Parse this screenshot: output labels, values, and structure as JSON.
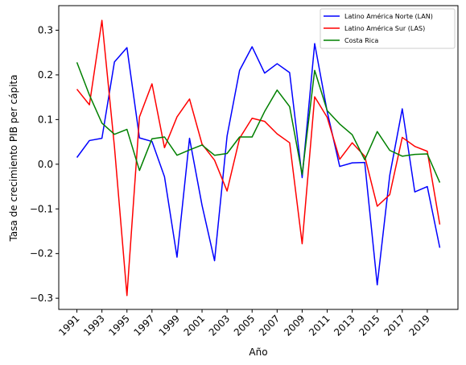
{
  "chart_data": {
    "type": "line",
    "title": "",
    "xlabel": "Año",
    "ylabel": "Tasa de crecimiento PIB per cápita",
    "x": [
      1991,
      1992,
      1993,
      1994,
      1995,
      1996,
      1997,
      1998,
      1999,
      2000,
      2001,
      2002,
      2003,
      2004,
      2005,
      2006,
      2007,
      2008,
      2009,
      2010,
      2011,
      2012,
      2013,
      2014,
      2015,
      2016,
      2017,
      2018,
      2019,
      2020
    ],
    "xticks": [
      1991,
      1993,
      1995,
      1997,
      1999,
      2001,
      2003,
      2005,
      2007,
      2009,
      2011,
      2013,
      2015,
      2017,
      2019
    ],
    "xtick_labels": [
      "1991",
      "1993",
      "1995",
      "1997",
      "1999",
      "2001",
      "2003",
      "2005",
      "2007",
      "2009",
      "2011",
      "2013",
      "2015",
      "2017",
      "2019"
    ],
    "yticks": [
      -0.3,
      -0.2,
      -0.1,
      0.0,
      0.1,
      0.2,
      0.3
    ],
    "ytick_labels": [
      "−0.3",
      "−0.2",
      "−0.1",
      "0.0",
      "0.1",
      "0.2",
      "0.3"
    ],
    "xlim": [
      1989.55,
      2021.45
    ],
    "ylim": [
      -0.325,
      0.355
    ],
    "grid": false,
    "legend_position": "top-right",
    "series": [
      {
        "name": "Latino América Norte (LAN)",
        "color": "#0000ff",
        "values": [
          0.015,
          0.053,
          0.058,
          0.229,
          0.261,
          0.059,
          0.051,
          -0.028,
          -0.208,
          0.058,
          -0.092,
          -0.216,
          0.063,
          0.21,
          0.263,
          0.204,
          0.225,
          0.205,
          -0.03,
          0.27,
          0.118,
          -0.005,
          0.003,
          0.004,
          -0.27,
          -0.025,
          0.124,
          -0.062,
          -0.05,
          -0.187
        ]
      },
      {
        "name": "Latino América Sur (LAS)",
        "color": "#ff0000",
        "values": [
          0.168,
          0.133,
          0.322,
          0.039,
          -0.294,
          0.106,
          0.18,
          0.037,
          0.106,
          0.146,
          0.045,
          0.009,
          -0.06,
          0.058,
          0.103,
          0.096,
          0.068,
          0.048,
          -0.178,
          0.151,
          0.105,
          0.011,
          0.048,
          0.018,
          -0.094,
          -0.068,
          0.06,
          0.04,
          0.029,
          -0.135
        ]
      },
      {
        "name": "Costa Rica",
        "color": "#008000",
        "values": [
          0.228,
          0.155,
          0.092,
          0.067,
          0.078,
          -0.014,
          0.057,
          0.061,
          0.02,
          0.032,
          0.043,
          0.02,
          0.024,
          0.061,
          0.061,
          0.118,
          0.166,
          0.129,
          -0.023,
          0.21,
          0.12,
          0.09,
          0.066,
          0.01,
          0.073,
          0.031,
          0.018,
          0.022,
          0.023,
          -0.041
        ]
      }
    ]
  }
}
